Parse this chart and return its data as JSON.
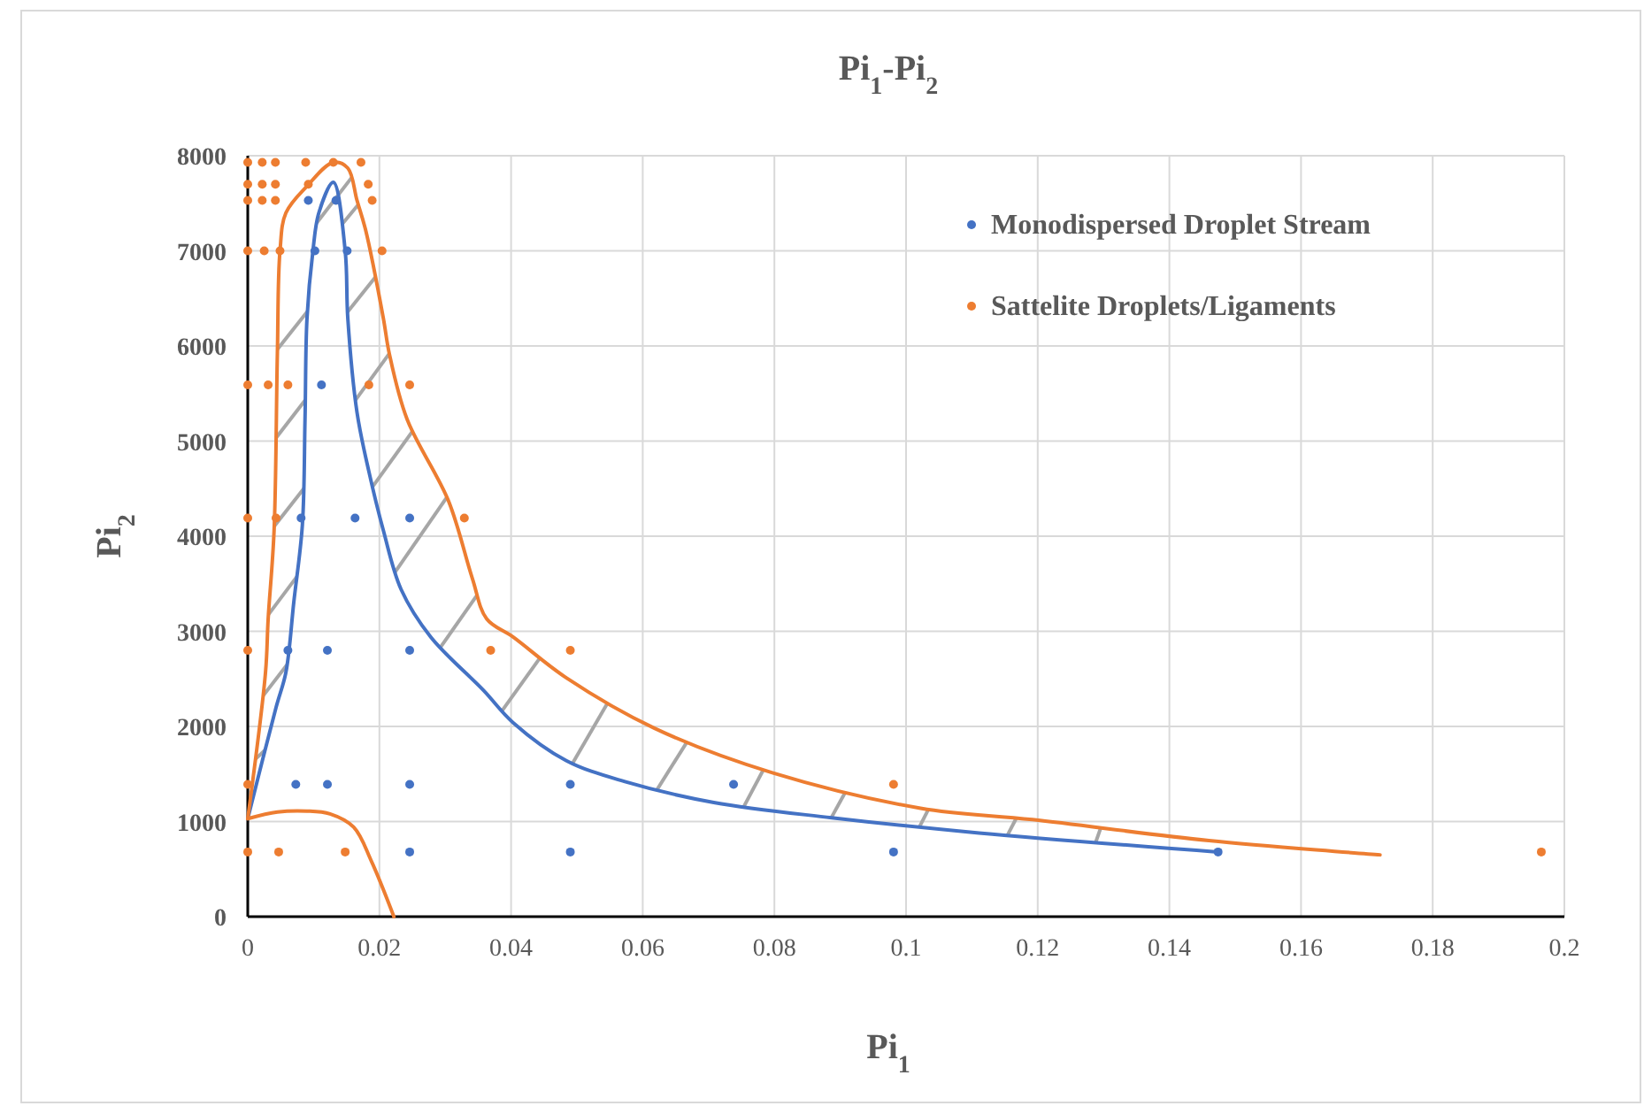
{
  "chart_data": {
    "type": "scatter",
    "title": "Pi$_{1}$-Pi$_{2}$",
    "xlabel": "Pi$_{1}$",
    "ylabel": "Pi$_{2}$",
    "xlim": [
      0,
      0.2
    ],
    "xticks": [
      0,
      0.02,
      0.04,
      0.06,
      0.08,
      0.1,
      0.12,
      0.14,
      0.16,
      0.18,
      0.2
    ],
    "ylim": [
      0,
      8000
    ],
    "yticks": [
      0,
      1000,
      2000,
      3000,
      4000,
      5000,
      6000,
      7000,
      8000
    ],
    "grid": true,
    "legend": "top right",
    "marker": "circle",
    "series": [
      {
        "name": "Monodispersed Droplet Stream",
        "color": "#4472c4",
        "x": [
          0.0092,
          0.0134,
          0.0102,
          0.0151,
          0.0112,
          0.0081,
          0.0163,
          0.0246,
          0.0061,
          0.0121,
          0.0246,
          0.0073,
          0.0121,
          0.0246,
          0.049,
          0.0738,
          0.0246,
          0.049,
          0.0981,
          0.1474
        ],
        "values": [
          7530,
          7530,
          7000,
          7000,
          5590,
          4190,
          4190,
          4190,
          2800,
          2800,
          2800,
          1390,
          1390,
          1390,
          1390,
          1390,
          680,
          680,
          680,
          680
        ]
      },
      {
        "name": "Sattelite Droplets/Ligaments",
        "color": "#ed7d31",
        "x": [
          0,
          0.0022,
          0.0042,
          0.0088,
          0.013,
          0.0172,
          0,
          0.0022,
          0.0042,
          0.0092,
          0.0183,
          0,
          0.0022,
          0.0042,
          0.0189,
          0,
          0.0025,
          0.0049,
          0.0204,
          0,
          0.0031,
          0.0061,
          0.0184,
          0.0246,
          0,
          0.0043,
          0.0329,
          0,
          0.0369,
          0.049,
          0,
          0.0981,
          0,
          0.0047,
          0.0148,
          0.1965
        ],
        "values": [
          7930,
          7930,
          7930,
          7930,
          7930,
          7930,
          7700,
          7700,
          7700,
          7700,
          7700,
          7530,
          7530,
          7530,
          7530,
          7000,
          7000,
          7000,
          7000,
          5590,
          5590,
          5590,
          5590,
          5590,
          4190,
          4190,
          4190,
          2800,
          2800,
          2800,
          1390,
          1390,
          680,
          680,
          680,
          680
        ]
      },
      {
        "type": "line",
        "color": "#4472c4",
        "marker": "none",
        "x": [
          0,
          0.0043,
          0.0058,
          0.007,
          0.0083,
          0.0087,
          0.009,
          0.0099,
          0.0108,
          0.013,
          0.0148,
          0.0152,
          0.0166,
          0.0184,
          0.0206,
          0.0233,
          0.0278,
          0.0358,
          0.0403,
          0.0484,
          0.0573,
          0.0708,
          0.0887,
          0.1111,
          0.1474
        ],
        "values": [
          1030,
          2200,
          2570,
          3310,
          4120,
          5230,
          6290,
          7000,
          7400,
          7720,
          7000,
          6290,
          5300,
          4680,
          4060,
          3440,
          2940,
          2380,
          2040,
          1640,
          1420,
          1200,
          1040,
          880,
          680
        ]
      },
      {
        "type": "line",
        "color": "#ed7d31",
        "marker": "none",
        "x": [
          0,
          0.0027,
          0.0031,
          0.004,
          0.0045,
          0.0049,
          0.0058,
          0.009,
          0.013,
          0.0152,
          0.0166,
          0.0179,
          0.0206,
          0.0215,
          0.0242,
          0.0305,
          0.0341,
          0.0363,
          0.0403,
          0.0484,
          0.0618,
          0.0798,
          0.1022,
          0.1192,
          0.146,
          0.172
        ],
        "values": [
          1030,
          2570,
          3130,
          4060,
          5920,
          7000,
          7400,
          7680,
          7930,
          7870,
          7530,
          7220,
          6290,
          5920,
          5230,
          4370,
          3560,
          3130,
          2940,
          2510,
          1980,
          1510,
          1140,
          1020,
          800,
          650
        ]
      },
      {
        "type": "line",
        "color": "#ed7d31",
        "marker": "none",
        "x": [
          0,
          0.0045,
          0.009,
          0.0125,
          0.0161,
          0.0188,
          0.0222
        ],
        "values": [
          1030,
          1100,
          1110,
          1080,
          940,
          580,
          0
        ]
      }
    ]
  }
}
